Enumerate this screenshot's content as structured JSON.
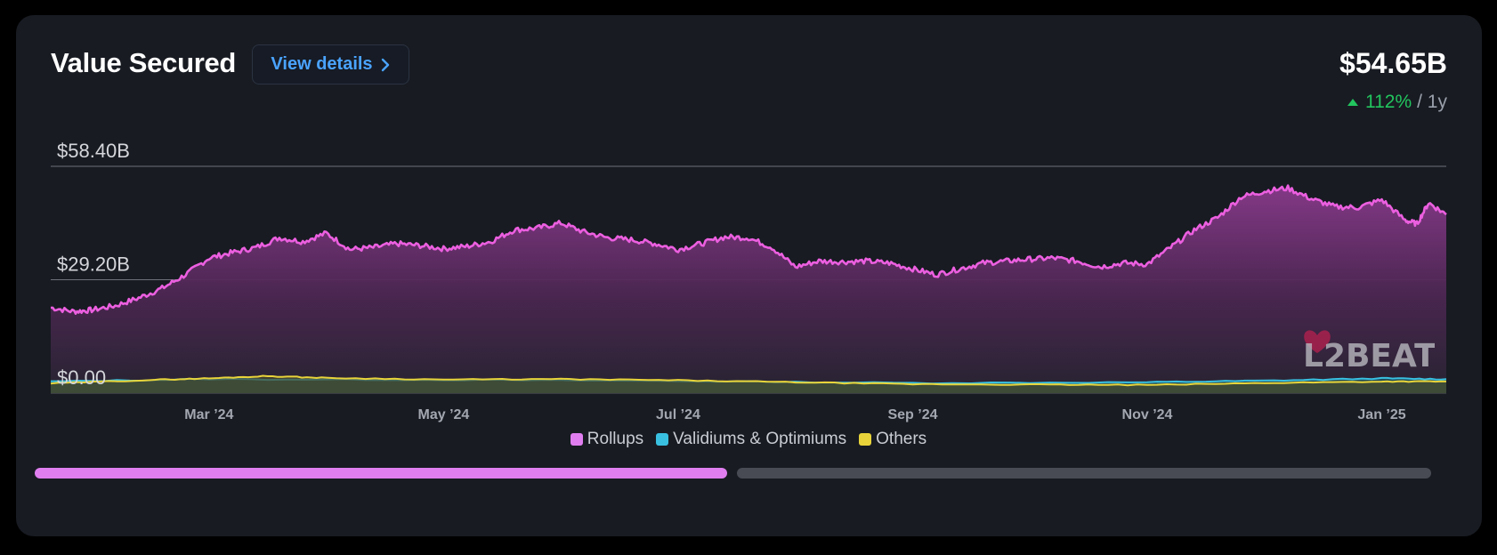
{
  "header": {
    "title": "Value Secured",
    "details_label": "View details",
    "total_value": "$54.65B",
    "change_pct": "112%",
    "change_period": "/ 1y"
  },
  "colors": {
    "rollups": "#e07ef0",
    "validiums": "#39c0e0",
    "others": "#e8d43a",
    "accent": "#4aa3ff",
    "positive": "#22c55e"
  },
  "logo_text": "L2BEAT",
  "progress": {
    "left_fraction": 0.5
  },
  "chart_data": {
    "type": "area",
    "title": "Value Secured",
    "y_ticks": [
      "$58.40B",
      "$29.20B",
      "$0.00"
    ],
    "y_tick_values": [
      58.4,
      29.2,
      0
    ],
    "ylim": [
      0,
      58.4
    ],
    "x_ticks": [
      "Mar ’24",
      "May ’24",
      "Jul ’24",
      "Sep ’24",
      "Nov ’24",
      "Jan ’25"
    ],
    "x_tick_positions": [
      1.0,
      3.0,
      5.0,
      7.0,
      9.0,
      11.0
    ],
    "xlim": [
      -0.35,
      11.55
    ],
    "grid": true,
    "legend_position": "bottom-center",
    "series": [
      {
        "name": "Rollups",
        "x": [
          -0.35,
          -0.15,
          0,
          0.2,
          0.4,
          0.6,
          0.8,
          1.0,
          1.2,
          1.4,
          1.6,
          1.8,
          2.0,
          2.2,
          2.4,
          2.6,
          2.8,
          3.0,
          3.2,
          3.4,
          3.6,
          3.8,
          4.0,
          4.2,
          4.4,
          4.6,
          4.8,
          5.0,
          5.2,
          5.4,
          5.6,
          5.8,
          6.0,
          6.2,
          6.4,
          6.6,
          6.8,
          7.0,
          7.2,
          7.4,
          7.6,
          7.8,
          8.0,
          8.2,
          8.4,
          8.6,
          8.8,
          9.0,
          9.2,
          9.4,
          9.6,
          9.8,
          10.0,
          10.2,
          10.4,
          10.6,
          10.8,
          11.0,
          11.2,
          11.3,
          11.4,
          11.55
        ],
        "values": [
          22.0,
          21.0,
          21.4,
          22.5,
          24.5,
          27.0,
          30.5,
          34.8,
          36.2,
          37.5,
          40.0,
          39.0,
          41.2,
          37.0,
          37.5,
          38.5,
          38.0,
          37.2,
          37.8,
          39.0,
          42.0,
          42.5,
          43.8,
          41.5,
          40.0,
          39.5,
          38.5,
          37.0,
          38.5,
          40.2,
          40.0,
          37.5,
          32.5,
          34.0,
          33.8,
          34.0,
          33.5,
          32.0,
          30.5,
          32.0,
          33.5,
          34.0,
          34.5,
          34.8,
          34.0,
          32.5,
          33.5,
          33.2,
          37.5,
          42.0,
          45.2,
          50.5,
          52.0,
          52.8,
          50.0,
          48.0,
          47.8,
          49.8,
          44.5,
          43.6,
          49.0,
          46.0
        ]
      },
      {
        "name": "Validiums & Optimiums",
        "x": [
          -0.35,
          1.0,
          3.0,
          5.0,
          7.0,
          9.0,
          10.0,
          11.0,
          11.55
        ],
        "values": [
          3.0,
          3.6,
          3.4,
          3.1,
          2.6,
          2.8,
          3.2,
          3.8,
          3.6
        ]
      },
      {
        "name": "Others",
        "x": [
          -0.35,
          0.5,
          1.0,
          1.5,
          2.0,
          3.0,
          4.0,
          5.0,
          6.0,
          7.0,
          8.0,
          9.0,
          10.0,
          11.0,
          11.55
        ],
        "values": [
          2.5,
          3.4,
          3.8,
          4.4,
          3.9,
          3.5,
          3.6,
          3.3,
          2.8,
          2.3,
          2.2,
          2.1,
          2.6,
          3.0,
          3.0
        ]
      }
    ]
  }
}
